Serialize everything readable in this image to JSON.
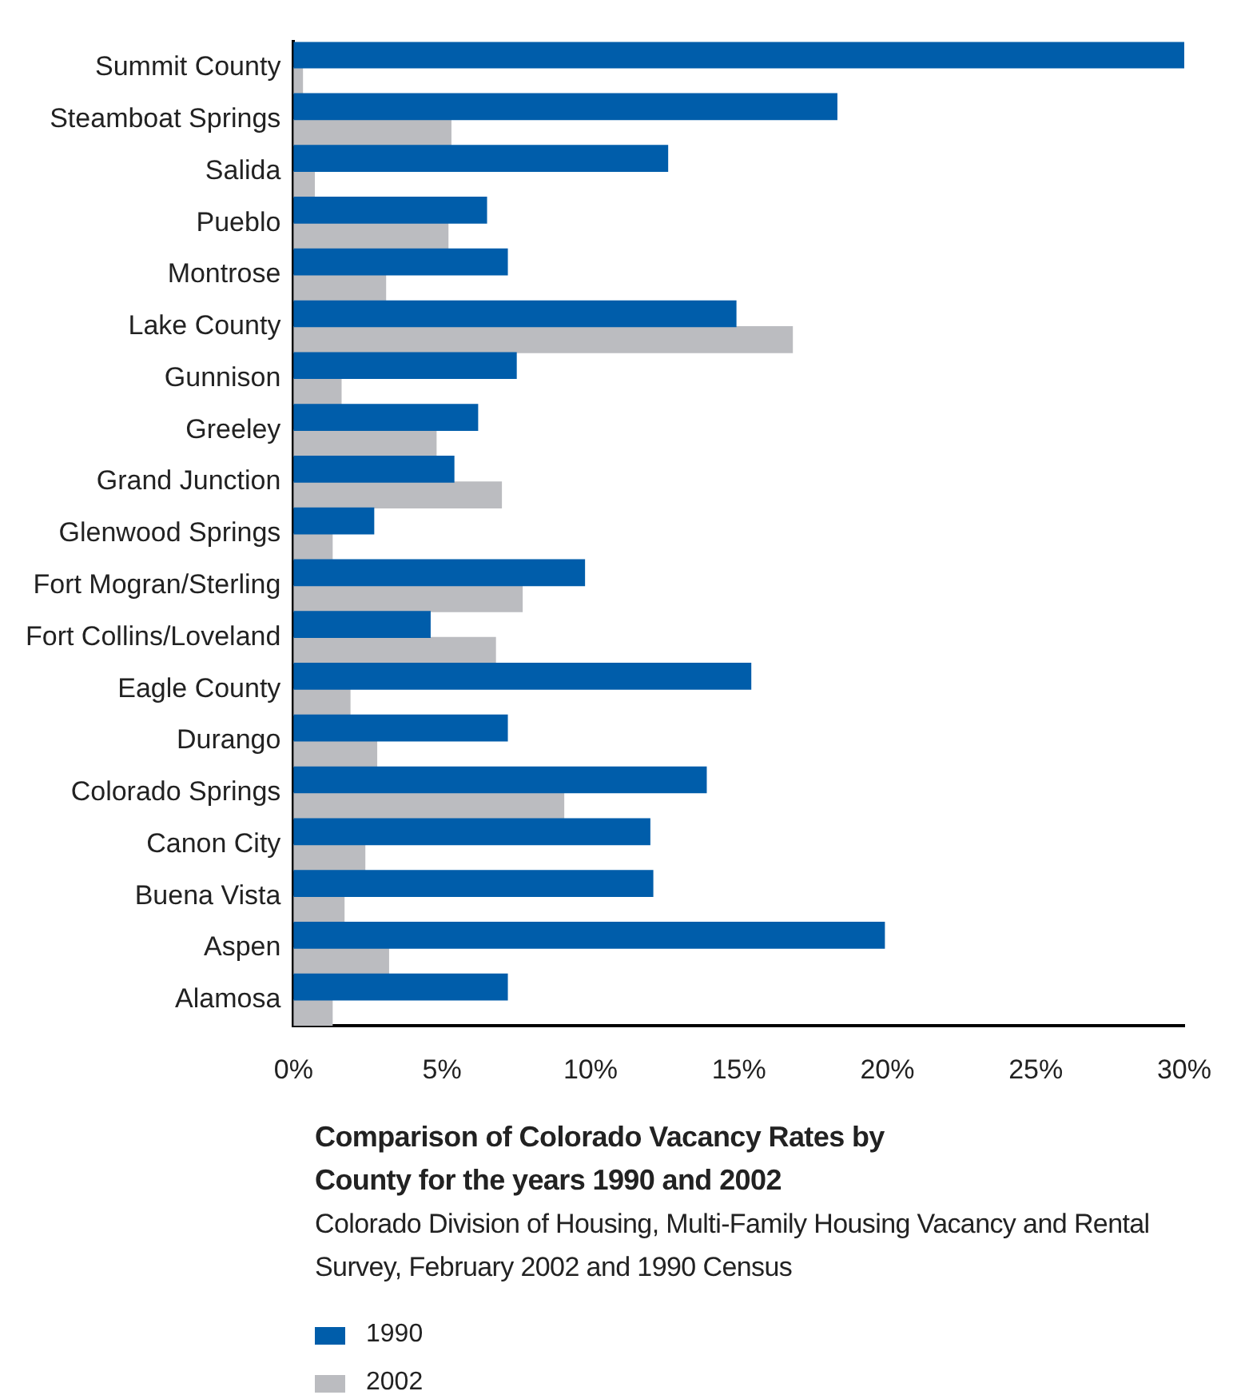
{
  "chart_data": {
    "type": "bar",
    "orientation": "horizontal",
    "title": "Comparison of Colorado Vacancy Rates by County for the years 1990 and 2002",
    "subtitle": "Colorado Division of Housing, Multi-Family Housing Vacancy and Rental Survey, February 2002 and 1990 Census",
    "categories": [
      "Summit County",
      "Steamboat Springs",
      "Salida",
      "Pueblo",
      "Montrose",
      "Lake County",
      "Gunnison",
      "Greeley",
      "Grand Junction",
      "Glenwood Springs",
      "Fort Mogran/Sterling",
      "Fort Collins/Loveland",
      "Eagle County",
      "Durango",
      "Colorado Springs",
      "Canon City",
      "Buena Vista",
      "Aspen",
      "Alamosa"
    ],
    "series": [
      {
        "name": "1990",
        "color": "#005daa",
        "values": [
          30.0,
          18.3,
          12.6,
          6.5,
          7.2,
          14.9,
          7.5,
          6.2,
          5.4,
          2.7,
          9.8,
          4.6,
          15.4,
          7.2,
          13.9,
          12.0,
          12.1,
          19.9,
          7.2
        ]
      },
      {
        "name": "2002",
        "color": "#bbbcc0",
        "values": [
          0.3,
          5.3,
          0.7,
          5.2,
          3.1,
          16.8,
          1.6,
          4.8,
          7.0,
          1.3,
          7.7,
          6.8,
          1.9,
          2.8,
          9.1,
          2.4,
          1.7,
          3.2,
          1.3
        ]
      }
    ],
    "xlim": [
      0,
      30
    ],
    "xticks": [
      {
        "value": 0,
        "label": "0%"
      },
      {
        "value": 5,
        "label": "5%"
      },
      {
        "value": 10,
        "label": "10%"
      },
      {
        "value": 15,
        "label": "15%"
      },
      {
        "value": 20,
        "label": "20%"
      },
      {
        "value": 25,
        "label": "25%"
      },
      {
        "value": 30,
        "label": "30%"
      }
    ],
    "grid": false,
    "legend": "bottom"
  }
}
